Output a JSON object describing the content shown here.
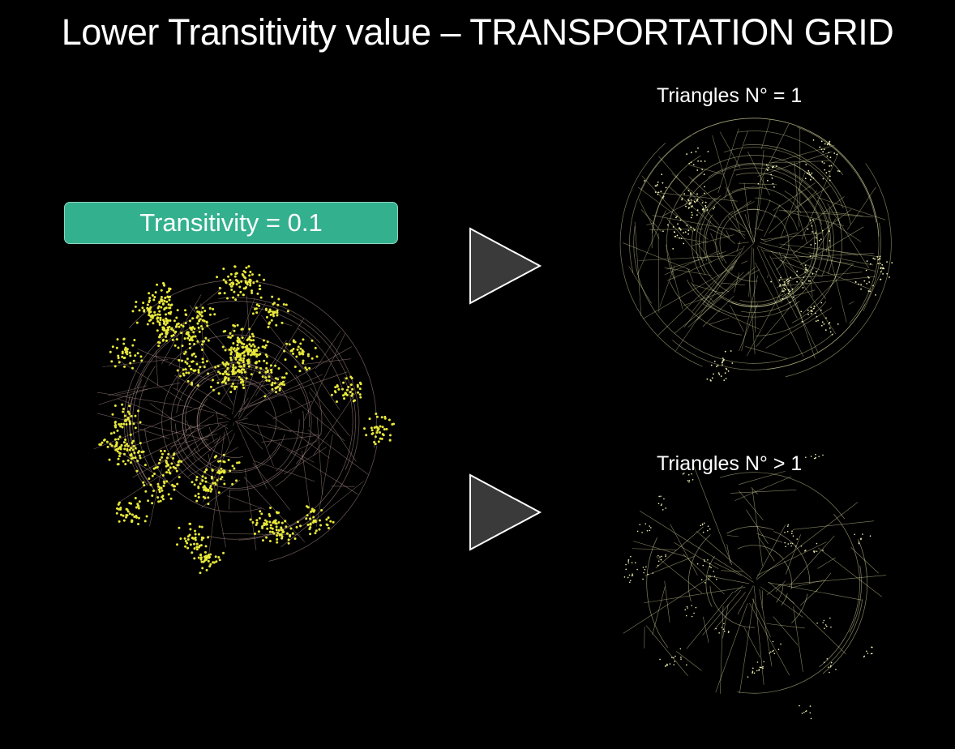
{
  "title": "Lower Transitivity value – TRANSPORTATION GRID",
  "transitivity_badge": "Transitivity = 0.1",
  "panels": {
    "top_label": "Triangles N° = 1",
    "bottom_label": "Triangles N° > 1"
  },
  "icons": {
    "arrow_top": "play-triangle-arrow-icon",
    "arrow_bottom": "play-triangle-arrow-icon"
  },
  "colors": {
    "background": "#000000",
    "badge_fill": "#33b08e",
    "badge_border": "#8fd6c2",
    "arrow_fill": "#3a3a3a",
    "arrow_border": "#ffffff",
    "main_network_nodes": "#e8e83a",
    "main_network_edges": "#c9a8a0",
    "filtered_network": "#f0efb0"
  }
}
